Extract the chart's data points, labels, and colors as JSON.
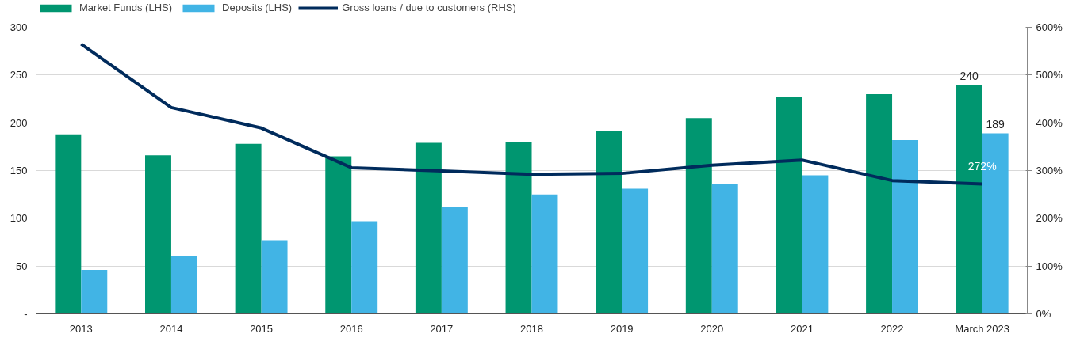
{
  "chart_data": {
    "type": "bar",
    "categories": [
      "2013",
      "2014",
      "2015",
      "2016",
      "2017",
      "2018",
      "2019",
      "2020",
      "2021",
      "2022",
      "March 2023"
    ],
    "series": [
      {
        "name": "Market Funds (LHS)",
        "type": "bar",
        "color": "#009670",
        "values": [
          188,
          166,
          178,
          165,
          179,
          180,
          191,
          205,
          227,
          230,
          240
        ],
        "value_labels": [
          null,
          null,
          null,
          null,
          null,
          null,
          null,
          null,
          null,
          null,
          "240"
        ]
      },
      {
        "name": "Deposits (LHS)",
        "type": "bar",
        "color": "#41b4e5",
        "values": [
          46,
          61,
          77,
          97,
          112,
          125,
          131,
          136,
          145,
          182,
          189
        ],
        "value_labels": [
          null,
          null,
          null,
          null,
          null,
          null,
          null,
          null,
          null,
          null,
          "189"
        ]
      },
      {
        "name": "Gross loans / due to customers (RHS)",
        "type": "line",
        "axis": "y2",
        "color": "#002b5c",
        "values": [
          565,
          432,
          389,
          306,
          299,
          292,
          294,
          311,
          322,
          279,
          272
        ],
        "value_labels": [
          null,
          null,
          null,
          null,
          null,
          null,
          null,
          null,
          null,
          null,
          "272%"
        ]
      }
    ],
    "ylim": [
      0,
      300
    ],
    "yticks": [
      {
        "value": 0,
        "label": "-"
      },
      50,
      100,
      150,
      200,
      250,
      300
    ],
    "y2lim": [
      0,
      600
    ],
    "y2ticks": [
      {
        "value": 0,
        "label": "0%"
      },
      {
        "value": 100,
        "label": "100%"
      },
      {
        "value": 200,
        "label": "200%"
      },
      {
        "value": 300,
        "label": "300%"
      },
      {
        "value": 400,
        "label": "400%"
      },
      {
        "value": 500,
        "label": "500%"
      },
      {
        "value": 600,
        "label": "600%"
      }
    ],
    "grid": "y",
    "legend": "top left"
  }
}
